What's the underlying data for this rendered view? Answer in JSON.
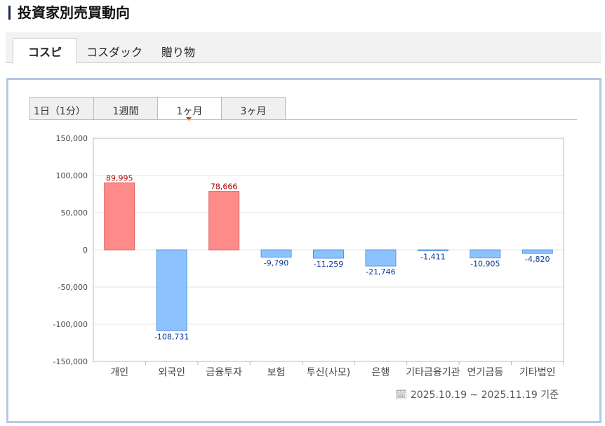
{
  "header": {
    "title": "投資家別売買動向"
  },
  "market_tabs": [
    {
      "label": "コスピ",
      "active": true
    },
    {
      "label": "コスダック",
      "active": false
    },
    {
      "label": "贈り物",
      "active": false
    }
  ],
  "period_tabs": [
    {
      "label": "1日（1分）",
      "active": false
    },
    {
      "label": "1週間",
      "active": false
    },
    {
      "label": "1ヶ月",
      "active": true
    },
    {
      "label": "3ヶ月",
      "active": false
    }
  ],
  "footer": {
    "date_range": "2025.10.19 ~ 2025.11.19 기준",
    "icon": "calendar-clock-icon"
  },
  "colors": {
    "positive": "#ff8a8a",
    "positive_label": "#b00000",
    "negative": "#8cc3ff",
    "negative_label": "#0a3a9a"
  },
  "chart_data": {
    "type": "bar",
    "categories": [
      "개인",
      "외국인",
      "금융투자",
      "보험",
      "투신(사모)",
      "은행",
      "기타금융기관",
      "연기금등",
      "기타법인"
    ],
    "values": [
      89995,
      -108731,
      78666,
      -9790,
      -11259,
      -21746,
      -1411,
      -10905,
      -4820
    ],
    "value_labels": [
      "89,995",
      "-108,731",
      "78,666",
      "-9,790",
      "-11,259",
      "-21,746",
      "-1,411",
      "-10,905",
      "-4,820"
    ],
    "ylim": [
      -150000,
      150000
    ],
    "yticks": [
      150000,
      100000,
      50000,
      0,
      -50000,
      -100000,
      -150000
    ],
    "ytick_labels": [
      "150,000",
      "100,000",
      "50,000",
      "0",
      "-50,000",
      "-100,000",
      "-150,000"
    ],
    "grid": true
  }
}
